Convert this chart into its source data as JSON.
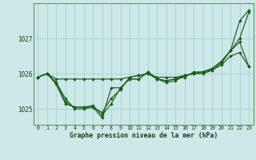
{
  "title": "Graphe pression niveau de la mer (hPa)",
  "background_color": "#cce8e8",
  "line_color": "#1a5c1a",
  "grid_color": "#a8d0d0",
  "xlim": [
    -0.5,
    23.5
  ],
  "ylim": [
    1024.55,
    1028.0
  ],
  "yticks": [
    1025,
    1026,
    1027
  ],
  "xticks": [
    0,
    1,
    2,
    3,
    4,
    5,
    6,
    7,
    8,
    9,
    10,
    11,
    12,
    13,
    14,
    15,
    16,
    17,
    18,
    19,
    20,
    21,
    22,
    23
  ],
  "series": [
    [
      1025.9,
      1026.0,
      1025.85,
      1025.85,
      1025.85,
      1025.85,
      1025.85,
      1025.85,
      1025.85,
      1025.85,
      1025.9,
      1025.95,
      1026.0,
      1025.9,
      1025.9,
      1025.9,
      1025.95,
      1026.0,
      1026.05,
      1026.1,
      1026.25,
      1026.5,
      1026.6,
      1026.2
    ],
    [
      1025.9,
      1026.0,
      1025.75,
      1025.3,
      1025.0,
      1025.0,
      1025.05,
      1024.9,
      1025.3,
      1025.55,
      1025.9,
      1025.95,
      1026.0,
      1025.85,
      1025.8,
      1025.85,
      1025.95,
      1026.0,
      1026.05,
      1026.15,
      1026.35,
      1026.65,
      1026.9,
      1026.2
    ],
    [
      1025.9,
      1026.0,
      1025.7,
      1025.15,
      1025.05,
      1025.05,
      1025.05,
      1024.75,
      1025.6,
      1025.6,
      1025.85,
      1025.85,
      1026.05,
      1025.85,
      1025.75,
      1025.8,
      1025.95,
      1026.0,
      1026.0,
      1026.1,
      1026.3,
      1026.65,
      1027.5,
      1027.8
    ],
    [
      1025.9,
      1026.0,
      1025.75,
      1025.2,
      1025.05,
      1025.05,
      1025.1,
      1024.82,
      1025.15,
      1025.6,
      1025.85,
      1025.85,
      1026.05,
      1025.85,
      1025.8,
      1025.85,
      1025.9,
      1026.05,
      1026.05,
      1026.15,
      1026.35,
      1026.65,
      1027.0,
      1027.75
    ]
  ]
}
